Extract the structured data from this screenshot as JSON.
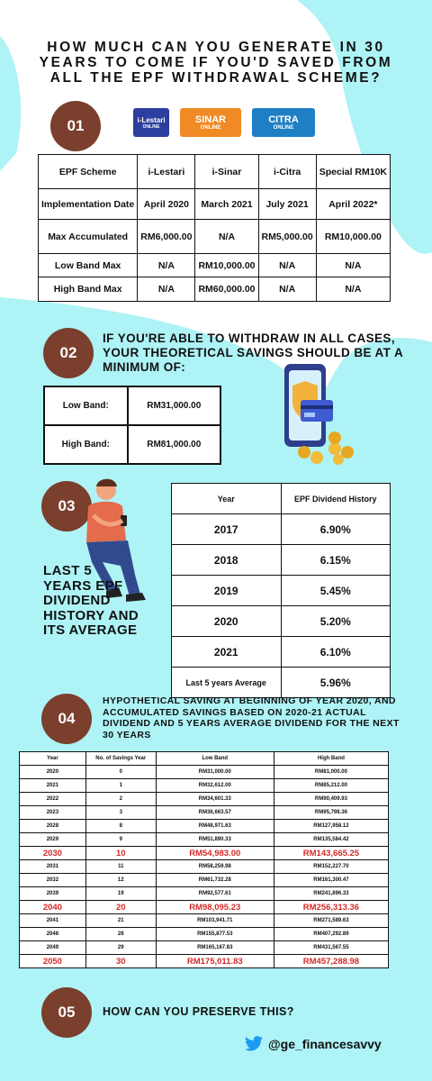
{
  "title": "HOW MUCH CAN YOU GENERATE IN 30 YEARS TO COME IF YOU'D SAVED FROM ALL THE EPF WITHDRAWAL SCHEME?",
  "sections": {
    "s1": {
      "number": "01"
    },
    "s2": {
      "number": "02",
      "heading": "IF YOU'RE ABLE TO WITHDRAW IN ALL CASES, YOUR THEORETICAL SAVINGS SHOULD BE AT A MINIMUM OF:"
    },
    "s3": {
      "number": "03",
      "heading": "LAST 5 YEARS EPF DIVIDEND HISTORY AND ITS AVERAGE"
    },
    "s4": {
      "number": "04",
      "heading": "HYPOTHETICAL SAVING AT BEGINNING OF YEAR 2020, AND ACCUMULATED SAVINGS BASED ON 2020-21 ACTUAL DIVIDEND AND 5 YEARS AVERAGE DIVIDEND FOR THE NEXT 30 YEARS"
    },
    "s5": {
      "number": "05",
      "heading": "HOW CAN YOU PRESERVE THIS?"
    }
  },
  "logos": {
    "lestari": {
      "text": "i-Lestari",
      "sub": "ONLINE"
    },
    "sinar": {
      "text": "SINAR",
      "sub": "ONLINE"
    },
    "citra": {
      "text": "CITRA",
      "sub": "ONLINE"
    }
  },
  "scheme_table": {
    "headers": [
      "EPF Scheme",
      "i-Lestari",
      "i-Sinar",
      "i-Citra",
      "Special RM10K"
    ],
    "rows": [
      [
        "Implementation Date",
        "April 2020",
        "March 2021",
        "July 2021",
        "April 2022*"
      ],
      [
        "Max Accumulated",
        "RM6,000.00",
        "N/A",
        "RM5,000.00",
        "RM10,000.00"
      ],
      [
        "Low Band Max",
        "N/A",
        "RM10,000.00",
        "N/A",
        "N/A"
      ],
      [
        "High Band Max",
        "N/A",
        "RM60,000.00",
        "N/A",
        "N/A"
      ]
    ]
  },
  "savings_table": {
    "rows": [
      [
        "Low Band:",
        "RM31,000.00"
      ],
      [
        "High Band:",
        "RM81,000.00"
      ]
    ]
  },
  "dividend_table": {
    "headers": [
      "Year",
      "EPF Dividend History"
    ],
    "rows": [
      [
        "2017",
        "6.90%"
      ],
      [
        "2018",
        "6.15%"
      ],
      [
        "2019",
        "5.45%"
      ],
      [
        "2020",
        "5.20%"
      ],
      [
        "2021",
        "6.10%"
      ],
      [
        "Last 5 years Average",
        "5.96%"
      ]
    ]
  },
  "projection_table": {
    "headers": [
      "Year",
      "No. of Savings Year",
      "Low Band",
      "High Band"
    ],
    "rows": [
      [
        "2020",
        "0",
        "RM31,000.00",
        "RM81,000.00"
      ],
      [
        "2021",
        "1",
        "RM32,612.00",
        "RM85,212.00"
      ],
      [
        "2022",
        "2",
        "RM34,601.33",
        "RM90,409.93"
      ],
      [
        "2023",
        "3",
        "RM36,663.57",
        "RM95,798.36"
      ],
      [
        "2028",
        "8",
        "RM48,971.63",
        "RM127,958.12"
      ],
      [
        "2029",
        "9",
        "RM51,890.33",
        "RM135,584.42"
      ],
      [
        "2030",
        "10",
        "RM54,983.00",
        "RM143,665.25"
      ],
      [
        "2031",
        "11",
        "RM58,259.98",
        "RM152,227.70"
      ],
      [
        "2032",
        "12",
        "RM61,732.28",
        "RM161,300.47"
      ],
      [
        "2039",
        "19",
        "RM92,577.61",
        "RM241,896.33"
      ],
      [
        "2040",
        "20",
        "RM98,095.23",
        "RM256,313.36"
      ],
      [
        "2041",
        "21",
        "RM103,941.71",
        "RM271,589.63"
      ],
      [
        "2048",
        "28",
        "RM155,877.53",
        "RM407,292.89"
      ],
      [
        "2049",
        "29",
        "RM165,167.83",
        "RM431,567.55"
      ],
      [
        "2050",
        "30",
        "RM175,011.83",
        "RM457,288.98"
      ]
    ],
    "highlight_years": [
      "2030",
      "2040",
      "2050"
    ]
  },
  "footer": {
    "twitter_handle": "@ge_financesavvy"
  },
  "colors": {
    "accent_brown": "#7a3f2d",
    "background_cyan": "#aef3f6",
    "highlight_red": "#d32a2a",
    "twitter_blue": "#1d9bf0"
  }
}
